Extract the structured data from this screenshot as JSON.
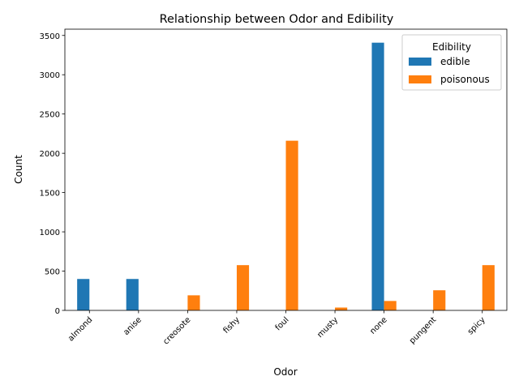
{
  "chart_data": {
    "type": "bar",
    "title": "Relationship between Odor and Edibility",
    "xlabel": "Odor",
    "ylabel": "Count",
    "categories": [
      "almond",
      "anise",
      "creosote",
      "fishy",
      "foul",
      "musty",
      "none",
      "pungent",
      "spicy"
    ],
    "series": [
      {
        "name": "edible",
        "color": "#1f77b4",
        "values": [
          400,
          400,
          0,
          0,
          0,
          0,
          3408,
          0,
          0
        ]
      },
      {
        "name": "poisonous",
        "color": "#ff7f0e",
        "values": [
          0,
          0,
          192,
          576,
          2160,
          36,
          120,
          256,
          576
        ]
      }
    ],
    "ylim": [
      0,
      3580
    ],
    "yticks": [
      0,
      500,
      1000,
      1500,
      2000,
      2500,
      3000,
      3500
    ],
    "grid": false,
    "legend": {
      "title": "Edibility",
      "placement": "top-right"
    }
  }
}
